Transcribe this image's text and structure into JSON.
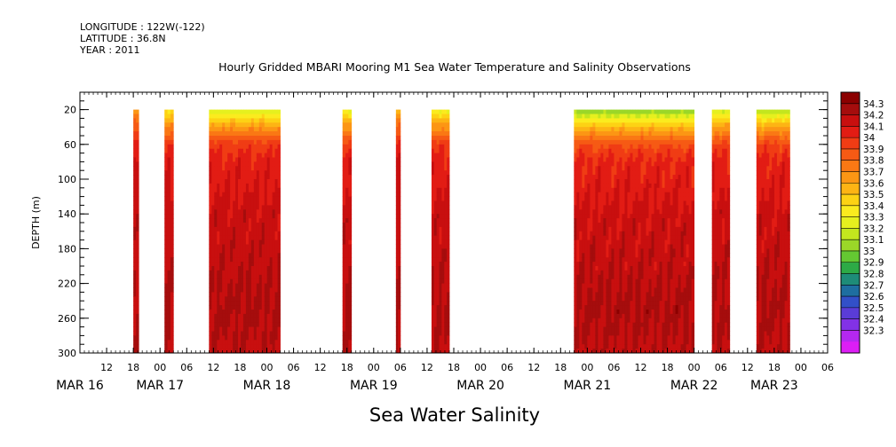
{
  "header": {
    "longitude": "LONGITUDE : 122W(-122)",
    "latitude": "LATITUDE : 36.8N",
    "year": "YEAR : 2011"
  },
  "chart_data": {
    "type": "heatmap",
    "title": "Hourly Gridded MBARI Mooring M1 Sea Water Temperature and Salinity Observations",
    "xlabel": "",
    "ylabel": "DEPTH (m)",
    "variable_label": "Sea Water Salinity",
    "x_range_hours": [
      6,
      174
    ],
    "x_ticks": [
      {
        "hour": 12,
        "label": "12"
      },
      {
        "hour": 18,
        "label": "18"
      },
      {
        "hour": 24,
        "label": "00"
      },
      {
        "hour": 30,
        "label": "06"
      },
      {
        "hour": 36,
        "label": "12"
      },
      {
        "hour": 42,
        "label": "18"
      },
      {
        "hour": 48,
        "label": "00"
      },
      {
        "hour": 54,
        "label": "06"
      },
      {
        "hour": 60,
        "label": "12"
      },
      {
        "hour": 66,
        "label": "18"
      },
      {
        "hour": 72,
        "label": "00"
      },
      {
        "hour": 78,
        "label": "06"
      },
      {
        "hour": 84,
        "label": "12"
      },
      {
        "hour": 90,
        "label": "18"
      },
      {
        "hour": 96,
        "label": "00"
      },
      {
        "hour": 102,
        "label": "06"
      },
      {
        "hour": 108,
        "label": "12"
      },
      {
        "hour": 114,
        "label": "18"
      },
      {
        "hour": 120,
        "label": "00"
      },
      {
        "hour": 126,
        "label": "06"
      },
      {
        "hour": 132,
        "label": "12"
      },
      {
        "hour": 138,
        "label": "18"
      },
      {
        "hour": 144,
        "label": "00"
      },
      {
        "hour": 150,
        "label": "06"
      },
      {
        "hour": 156,
        "label": "12"
      },
      {
        "hour": 162,
        "label": "18"
      },
      {
        "hour": 168,
        "label": "00"
      },
      {
        "hour": 174,
        "label": "06"
      }
    ],
    "date_labels": [
      {
        "hour": 6,
        "label": "MAR 16"
      },
      {
        "hour": 24,
        "label": "MAR 17"
      },
      {
        "hour": 48,
        "label": "MAR 18"
      },
      {
        "hour": 72,
        "label": "MAR 19"
      },
      {
        "hour": 96,
        "label": "MAR 20"
      },
      {
        "hour": 120,
        "label": "MAR 21"
      },
      {
        "hour": 144,
        "label": "MAR 22"
      },
      {
        "hour": 162,
        "label": "MAR 23"
      }
    ],
    "y_range": [
      0,
      300
    ],
    "y_ticks": [
      20,
      60,
      100,
      140,
      180,
      220,
      260,
      300
    ],
    "data_depth_range": [
      20,
      300
    ],
    "segments": [
      {
        "start": 18.0,
        "end": 19.2,
        "surface": 33.6,
        "profile": "thin"
      },
      {
        "start": 25.0,
        "end": 27.0,
        "surface": 33.3,
        "profile": "thin"
      },
      {
        "start": 35.0,
        "end": 51.0,
        "surface": 33.2,
        "profile": "full"
      },
      {
        "start": 65.0,
        "end": 67.0,
        "surface": 33.2,
        "profile": "thin"
      },
      {
        "start": 77.0,
        "end": 78.0,
        "surface": 33.5,
        "profile": "thin"
      },
      {
        "start": 85.0,
        "end": 89.0,
        "surface": 33.2,
        "profile": "thin"
      },
      {
        "start": 117.0,
        "end": 144.0,
        "surface": 33.0,
        "profile": "full"
      },
      {
        "start": 148.0,
        "end": 152.0,
        "surface": 33.1,
        "profile": "thin"
      },
      {
        "start": 158.0,
        "end": 165.5,
        "surface": 33.1,
        "profile": "full"
      }
    ],
    "depth_profile": [
      {
        "depth": 20,
        "offset": 0.0
      },
      {
        "depth": 40,
        "offset": 0.45
      },
      {
        "depth": 60,
        "offset": 0.75
      },
      {
        "depth": 80,
        "offset": 0.85
      },
      {
        "depth": 100,
        "offset": 0.88
      },
      {
        "depth": 140,
        "offset": 0.94
      },
      {
        "depth": 200,
        "offset": 0.98
      },
      {
        "depth": 250,
        "offset": 1.02
      },
      {
        "depth": 280,
        "offset": 1.0
      },
      {
        "depth": 300,
        "offset": 0.98
      }
    ],
    "deep_value": 34.2,
    "colorbar": {
      "levels": [
        "34.3",
        "34.2",
        "34.1",
        "34",
        "33.9",
        "33.8",
        "33.7",
        "33.6",
        "33.5",
        "33.4",
        "33.3",
        "33.2",
        "33.1",
        "33",
        "32.9",
        "32.8",
        "32.7",
        "32.6",
        "32.5",
        "32.4",
        "32.3"
      ],
      "colors": [
        "#8b0000",
        "#a50d0d",
        "#c80f0f",
        "#e21c14",
        "#f03c14",
        "#f65a14",
        "#fa7814",
        "#fc9614",
        "#fdb414",
        "#fdd214",
        "#fbeb1e",
        "#e6f01e",
        "#c3e61e",
        "#9bd728",
        "#64c832",
        "#2daa46",
        "#1e8c78",
        "#1e6ea0",
        "#3250c8",
        "#5a3cd7",
        "#8232e6",
        "#b428f0",
        "#dc1ef5"
      ]
    }
  }
}
